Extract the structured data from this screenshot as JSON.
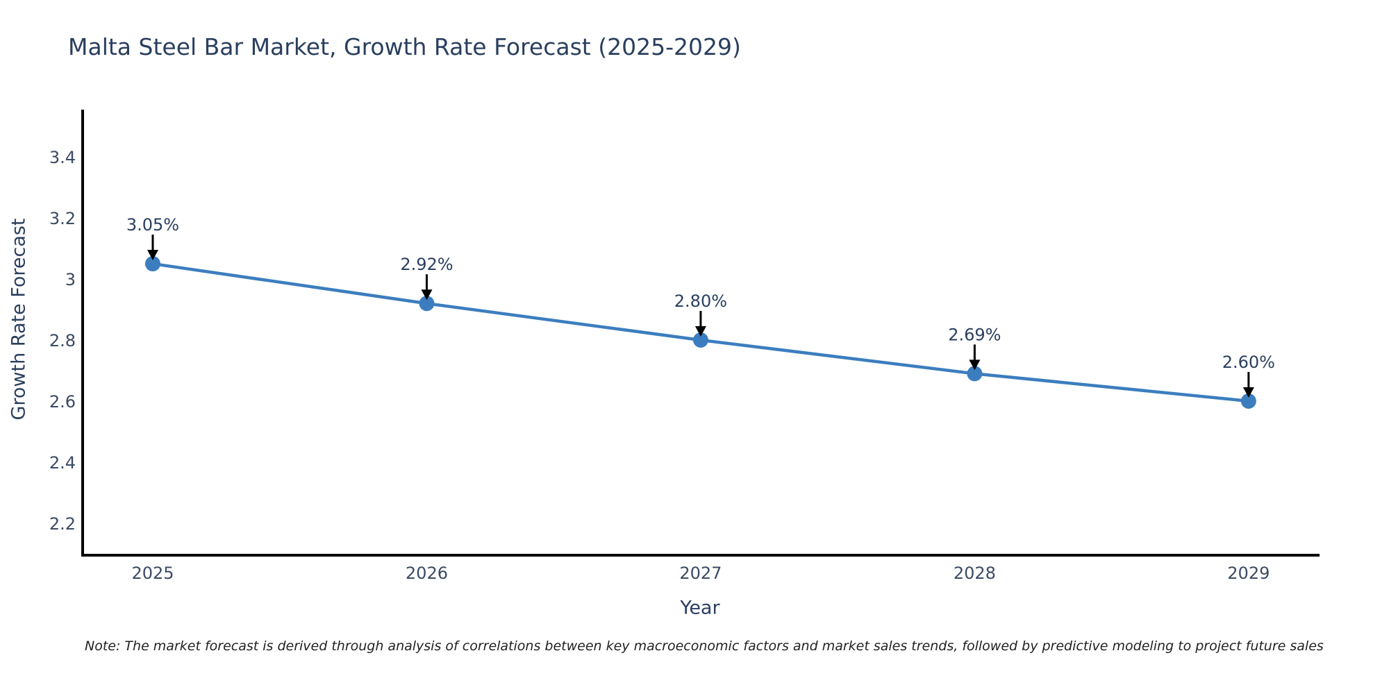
{
  "title": "Malta Steel Bar Market, Growth Rate Forecast (2025-2029)",
  "note": "Note: The market forecast is derived through analysis of correlations between key macroeconomic factors and market sales trends, followed by predictive modeling to project future sales",
  "chart_data": {
    "type": "line",
    "title": "Malta Steel Bar Market, Growth Rate Forecast (2025-2029)",
    "xlabel": "Year",
    "ylabel": "Growth Rate Forecast",
    "x": [
      2025,
      2026,
      2027,
      2028,
      2029
    ],
    "values": [
      3.05,
      2.92,
      2.8,
      2.69,
      2.6
    ],
    "point_labels": [
      "3.05%",
      "2.92%",
      "2.80%",
      "2.69%",
      "2.60%"
    ],
    "xtick_labels": [
      "2025",
      "2026",
      "2027",
      "2028",
      "2029"
    ],
    "ytick_values": [
      3.4,
      3.2,
      3.0,
      2.8,
      2.6,
      2.4,
      2.2
    ],
    "ytick_labels": [
      "3.4",
      "3.2",
      "3",
      "2.8",
      "2.6",
      "2.4",
      "2.2"
    ],
    "xlim": [
      2024.744,
      2029.259
    ],
    "ylim": [
      2.095,
      3.555
    ],
    "grid": false,
    "legend": "none",
    "line_color": "#3c7dbf",
    "marker_color": "#3c7dbf",
    "axis_color": "#000000",
    "text_color": "#2a3f5f",
    "annotation_arrow_color": "#000000"
  }
}
